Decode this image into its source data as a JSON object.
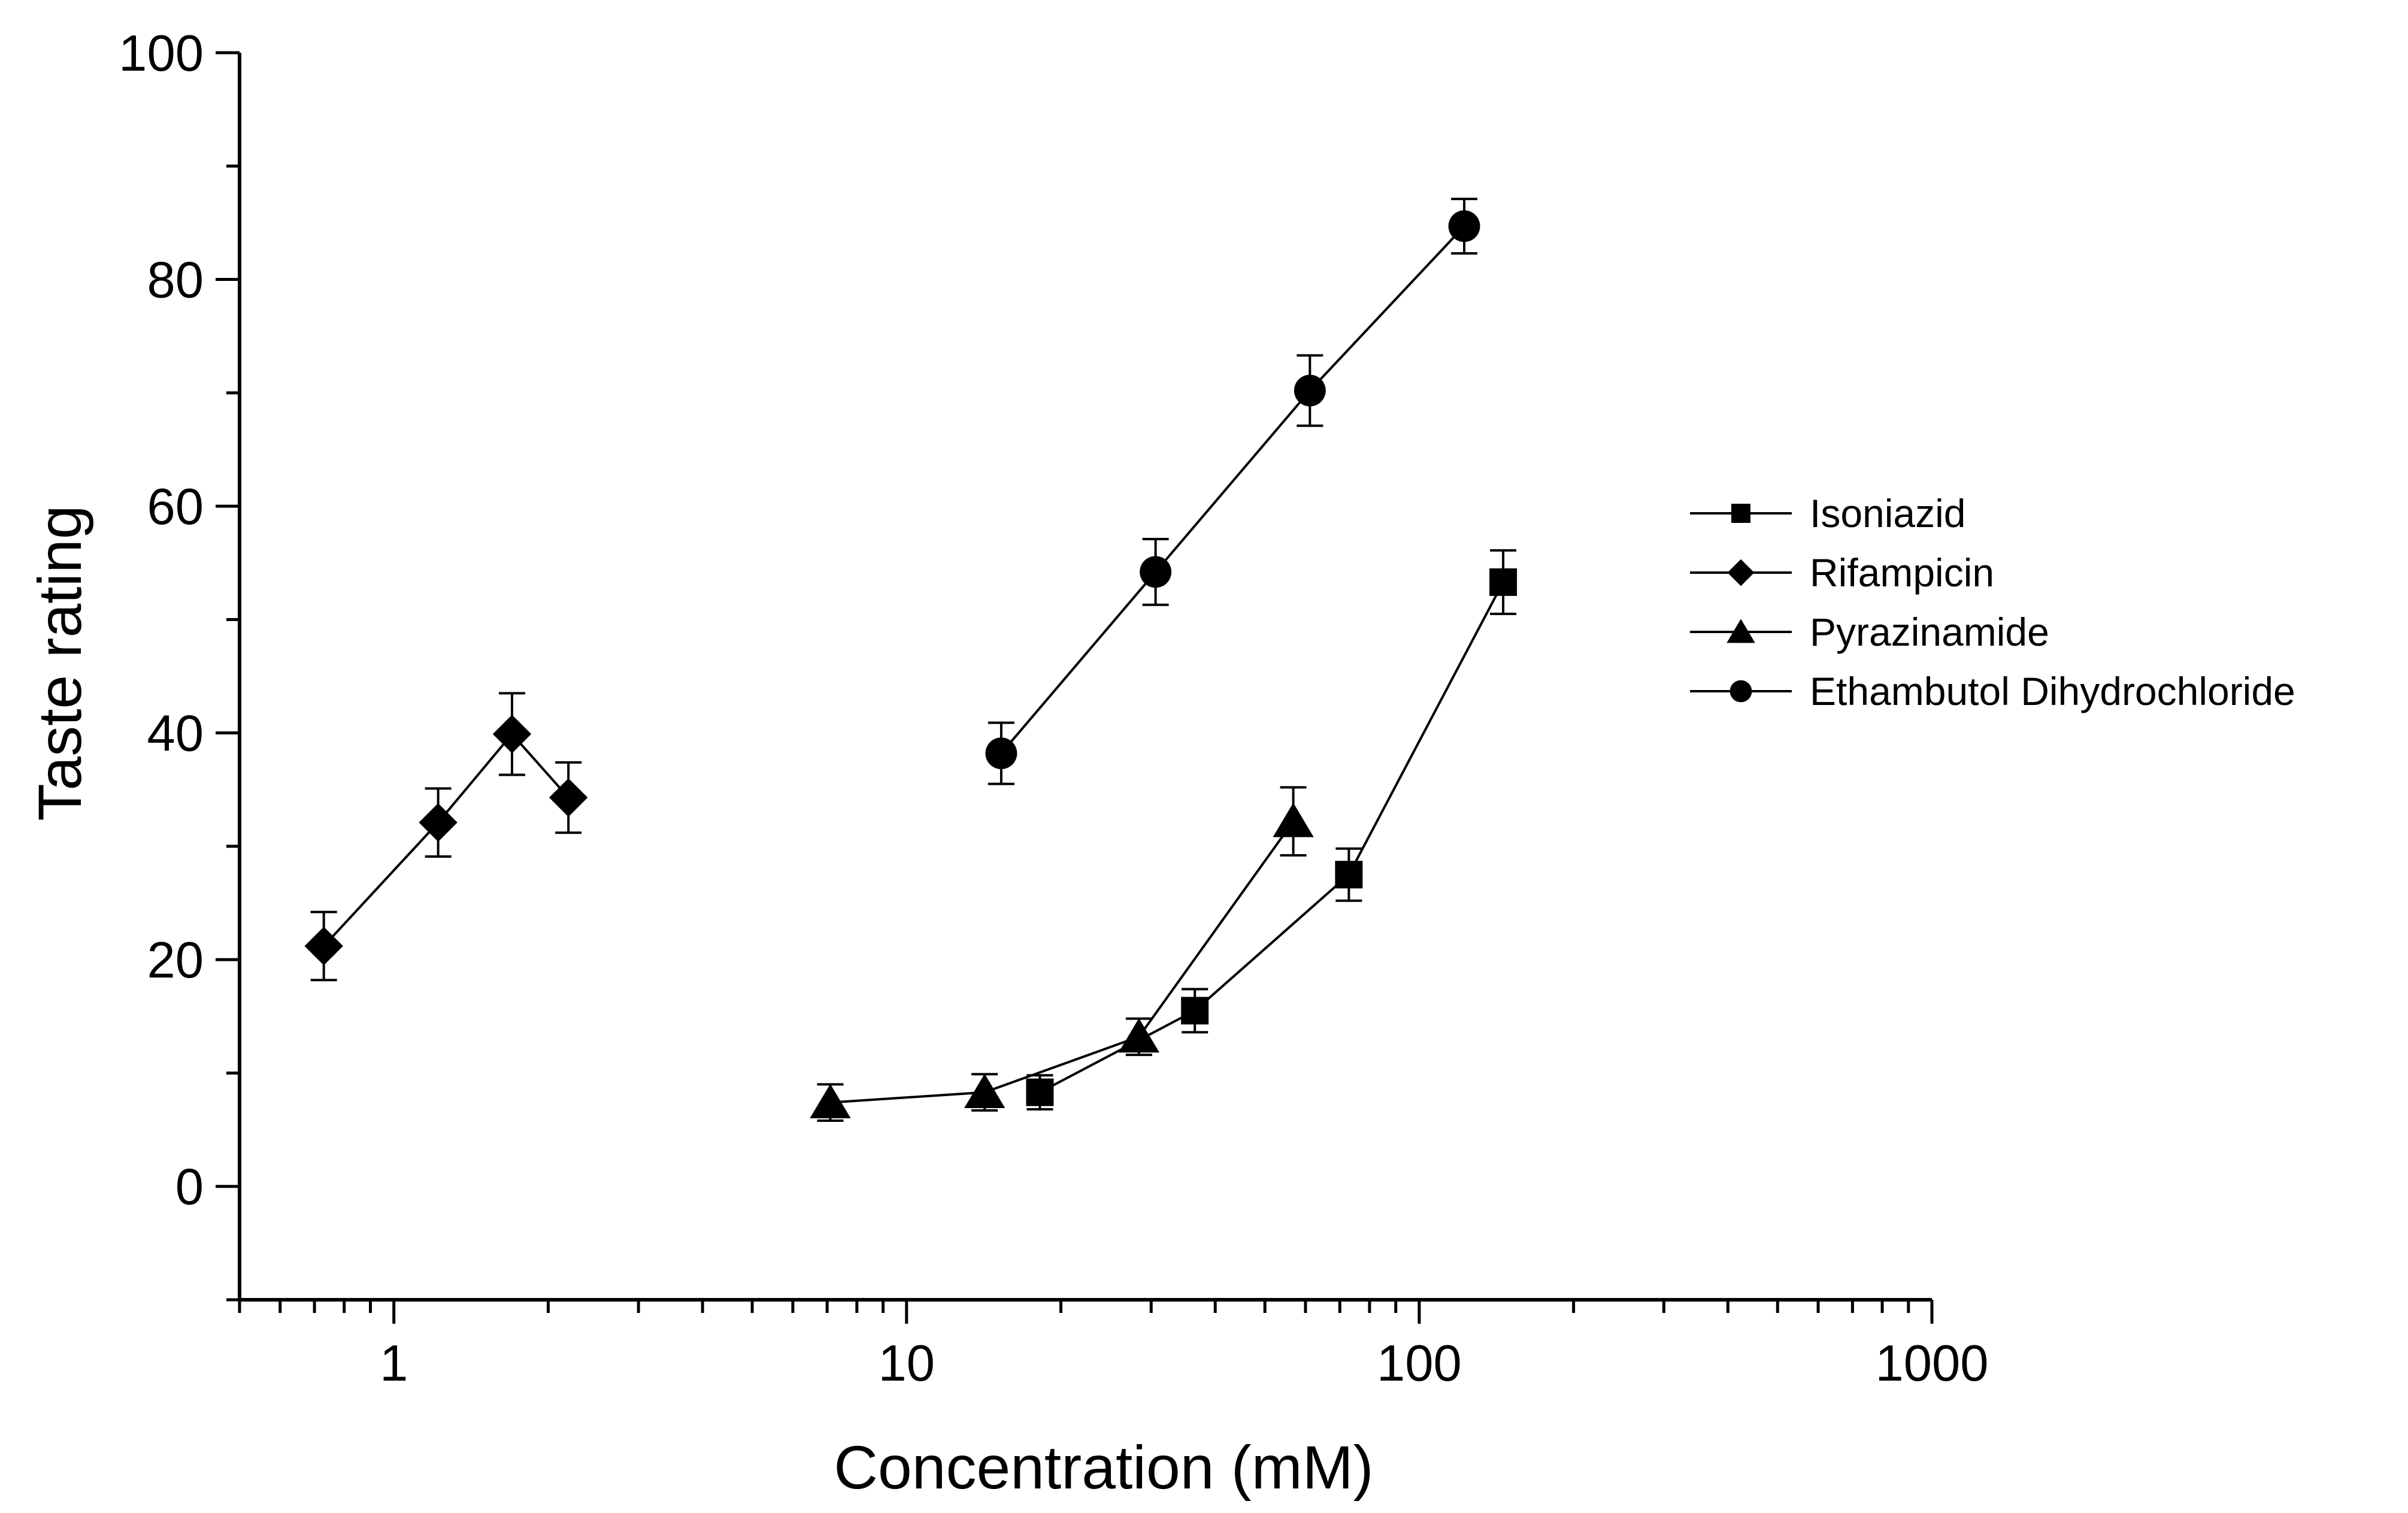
{
  "chart_data": {
    "type": "scatter",
    "title": "",
    "xlabel": "Concentration (mM)",
    "ylabel": "Taste rating",
    "xscale": "log",
    "xlim": [
      0.5,
      1000
    ],
    "ylim": [
      -10,
      100
    ],
    "grid": false,
    "legend_position": "right",
    "x_ticks": [
      {
        "value": 1,
        "label": "1"
      },
      {
        "value": 10,
        "label": "10"
      },
      {
        "value": 100,
        "label": "100"
      },
      {
        "value": 1000,
        "label": "1000"
      }
    ],
    "y_ticks": [
      {
        "value": 0,
        "label": "0"
      },
      {
        "value": 20,
        "label": "20"
      },
      {
        "value": 40,
        "label": "40"
      },
      {
        "value": 60,
        "label": "60"
      },
      {
        "value": 80,
        "label": "80"
      },
      {
        "value": 100,
        "label": "100"
      }
    ],
    "series": [
      {
        "name": "Isoniazid",
        "marker": "square",
        "x": [
          18.2,
          36.5,
          72.9,
          145.8
        ],
        "y": [
          8.3,
          15.5,
          27.5,
          53.3
        ],
        "err": [
          1.5,
          1.9,
          2.3,
          2.8
        ]
      },
      {
        "name": "Rifampicin",
        "marker": "diamond",
        "x": [
          0.73,
          1.22,
          1.7,
          2.19
        ],
        "y": [
          21.2,
          32.1,
          39.9,
          34.3
        ],
        "err": [
          3.0,
          3.0,
          3.6,
          3.1
        ]
      },
      {
        "name": "Pyrazinamide",
        "marker": "triangle",
        "x": [
          7.1,
          14.2,
          28.4,
          56.8
        ],
        "y": [
          7.4,
          8.3,
          13.2,
          32.2
        ],
        "err": [
          1.6,
          1.6,
          1.6,
          3.0
        ]
      },
      {
        "name": "Ethambutol Dihydrochloride",
        "marker": "circle",
        "x": [
          15.3,
          30.6,
          61.2,
          122.4
        ],
        "y": [
          38.2,
          54.2,
          70.2,
          84.7
        ],
        "err": [
          2.7,
          2.9,
          3.1,
          2.4
        ]
      }
    ]
  }
}
